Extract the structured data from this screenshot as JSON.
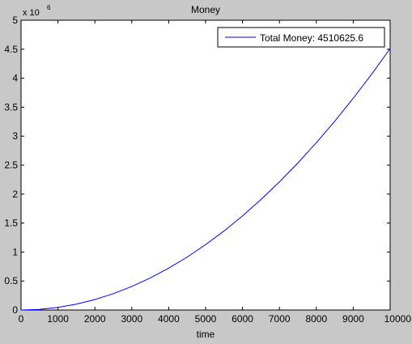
{
  "chart_data": {
    "type": "line",
    "title": "Money",
    "xlabel": "time",
    "ylabel": "",
    "y_exponent_label": "x 10",
    "y_exponent_power": "6",
    "xlim": [
      0,
      10000
    ],
    "ylim": [
      0,
      5
    ],
    "x_ticks": [
      0,
      1000,
      2000,
      3000,
      4000,
      5000,
      6000,
      7000,
      8000,
      9000,
      10000
    ],
    "x_tick_labels": [
      "0",
      "1000",
      "2000",
      "3000",
      "4000",
      "5000",
      "6000",
      "7000",
      "8000",
      "9000",
      "10000"
    ],
    "y_ticks": [
      0,
      0.5,
      1,
      1.5,
      2,
      2.5,
      3,
      3.5,
      4,
      4.5,
      5
    ],
    "y_tick_labels": [
      "0",
      "0.5",
      "1",
      "1.5",
      "2",
      "2.5",
      "3",
      "3.5",
      "4",
      "4.5",
      "5"
    ],
    "grid": false,
    "legend_position": "top-right",
    "series": [
      {
        "name": "Total Money: 4510625.6",
        "color": "#0000ff",
        "x": [
          0,
          500,
          1000,
          1500,
          2000,
          2500,
          3000,
          3500,
          4000,
          4500,
          5000,
          5500,
          6000,
          6500,
          7000,
          7500,
          8000,
          8500,
          9000,
          9500,
          10000
        ],
        "y": [
          0,
          0.011,
          0.045,
          0.101,
          0.18,
          0.282,
          0.406,
          0.552,
          0.722,
          0.913,
          1.128,
          1.364,
          1.624,
          1.906,
          2.21,
          2.537,
          2.887,
          3.259,
          3.654,
          4.071,
          4.511
        ]
      }
    ]
  }
}
